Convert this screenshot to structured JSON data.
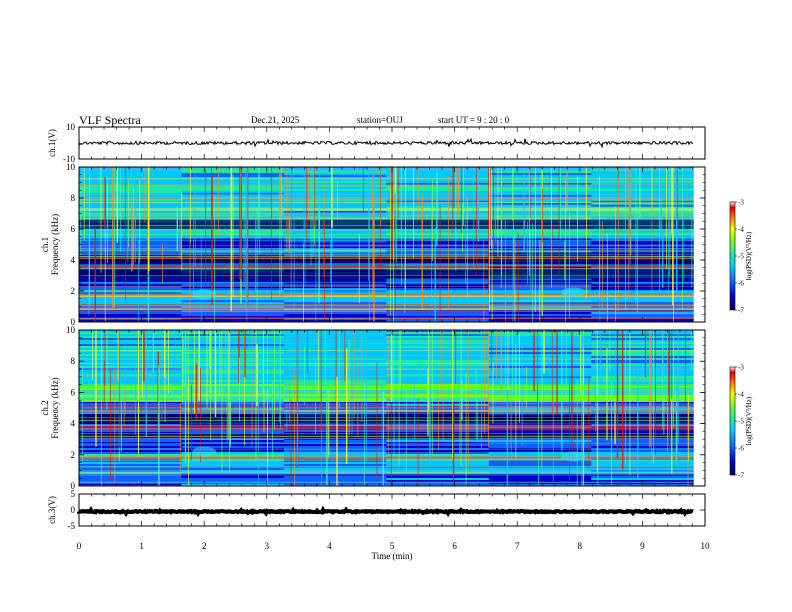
{
  "header": {
    "title": "VLF Spectra",
    "date": "Dec.21, 2025",
    "station": "station=OUJ",
    "start_ut": "start  UT =  9 : 20 : 0"
  },
  "palette": {
    "colormap": [
      "#000060",
      "#0000c0",
      "#1060ff",
      "#00c8ff",
      "#20e8a0",
      "#60ff20",
      "#ffff00",
      "#ff8000",
      "#e00000",
      "#ffffff"
    ]
  },
  "chart_data": [
    {
      "id": "ch1-waveform",
      "type": "line",
      "ylabel": "ch.1(V)",
      "ylim": [
        -10,
        10
      ],
      "yticks": [
        "10",
        "-10"
      ],
      "xlim": [
        0,
        10
      ],
      "baseline": 0
    },
    {
      "id": "ch1-spectrogram",
      "type": "heatmap",
      "ylabel": "ch.1\nFrequency (kHz)",
      "ylim": [
        0,
        10
      ],
      "yticks": [
        "0",
        "2",
        "4",
        "6",
        "8",
        "10"
      ],
      "xlim": [
        0,
        10
      ],
      "colorbar": {
        "label": "log(PSD)(V²/Hz)",
        "range": [
          -7,
          -3
        ],
        "ticks": [
          "-3",
          "-4",
          "-5",
          "-6",
          "-7"
        ]
      }
    },
    {
      "id": "ch2-spectrogram",
      "type": "heatmap",
      "ylabel": "ch.2\nFrequency (kHz)",
      "ylim": [
        0,
        10
      ],
      "yticks": [
        "0",
        "2",
        "4",
        "6",
        "8",
        "10"
      ],
      "xlim": [
        0,
        10
      ],
      "colorbar": {
        "label": "log(PSD)(V²/Hz)",
        "range": [
          -7,
          -3
        ],
        "ticks": [
          "-3",
          "-4",
          "-5",
          "-6",
          "-7"
        ]
      }
    },
    {
      "id": "ch3-waveform",
      "type": "line",
      "ylabel": "ch.3(V)",
      "ylim": [
        -5,
        5
      ],
      "yticks": [
        "5",
        "0",
        "-5"
      ],
      "xlim": [
        0,
        10
      ],
      "baseline": -0.5
    }
  ],
  "xaxis": {
    "label": "Time (min)",
    "ticks": [
      "0",
      "1",
      "2",
      "3",
      "4",
      "5",
      "6",
      "7",
      "8",
      "9",
      "10"
    ],
    "range": [
      0,
      10
    ],
    "data_end": 9.82
  }
}
